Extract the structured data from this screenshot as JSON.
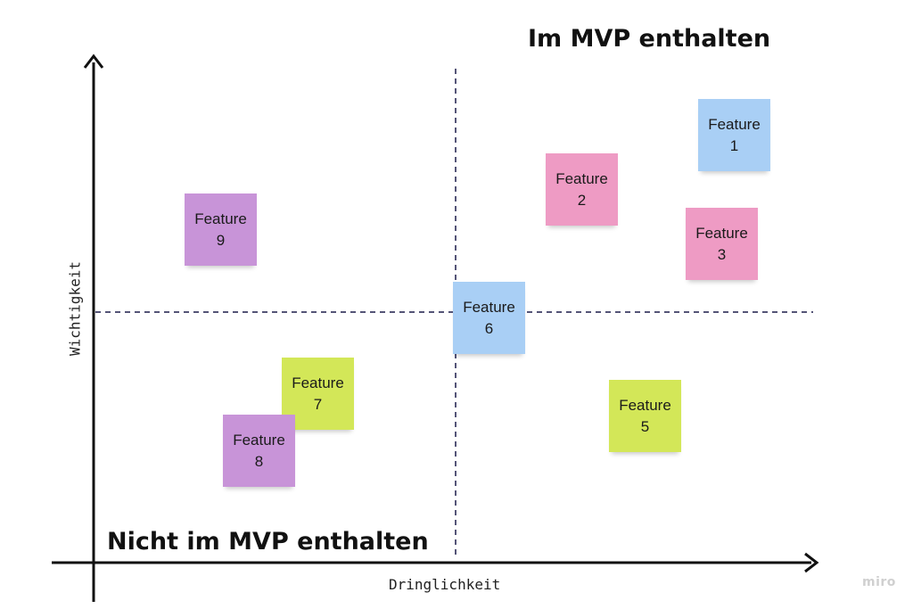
{
  "titles": {
    "top_right": "Im MVP enthalten",
    "bottom_left": "Nicht im MVP enthalten"
  },
  "axes": {
    "x_label": "Dringlichkeit",
    "y_label": "Wichtigkeit"
  },
  "watermark": "miro",
  "colors": {
    "blue": "#a9cff5",
    "pink": "#ee9bc4",
    "purple": "#c894d8",
    "lime": "#d3e758",
    "axis": "#111111",
    "divider": "#1b1b4a"
  },
  "notes": [
    {
      "id": "feature-1",
      "label": "Feature",
      "number": "1",
      "color": "blue"
    },
    {
      "id": "feature-2",
      "label": "Feature",
      "number": "2",
      "color": "pink"
    },
    {
      "id": "feature-3",
      "label": "Feature",
      "number": "3",
      "color": "pink"
    },
    {
      "id": "feature-5",
      "label": "Feature",
      "number": "5",
      "color": "lime"
    },
    {
      "id": "feature-6",
      "label": "Feature",
      "number": "6",
      "color": "blue"
    },
    {
      "id": "feature-7",
      "label": "Feature",
      "number": "7",
      "color": "lime"
    },
    {
      "id": "feature-8",
      "label": "Feature",
      "number": "8",
      "color": "purple"
    },
    {
      "id": "feature-9",
      "label": "Feature",
      "number": "9",
      "color": "purple"
    }
  ]
}
